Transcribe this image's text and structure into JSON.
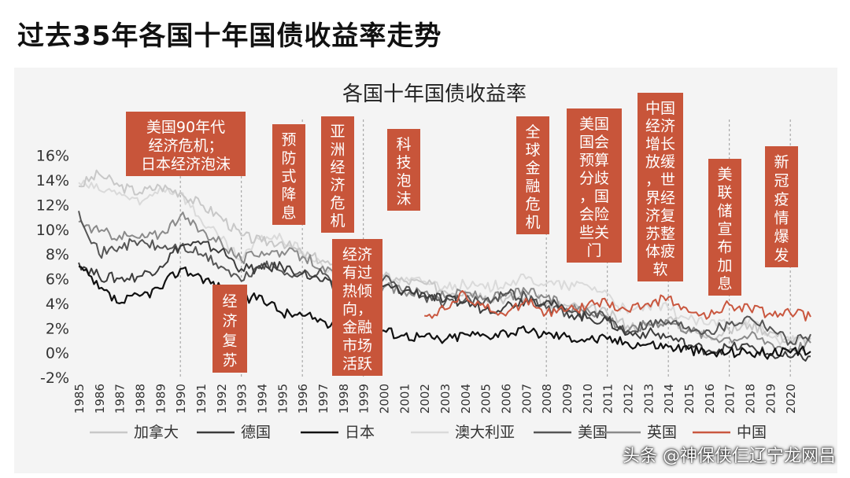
{
  "page": {
    "title": "过去35年各国十年国债收益率走势",
    "watermark": "头条 @神保侠仨辽宁龙网吕"
  },
  "chart_data": {
    "type": "line",
    "title": "各国十年国债收益率",
    "xlabel": "",
    "ylabel": "",
    "ylim": [
      -2,
      17
    ],
    "xlim": [
      1985,
      2021
    ],
    "y_ticks": [
      "16%",
      "14%",
      "12%",
      "10%",
      "8%",
      "6%",
      "4%",
      "2%",
      "0%",
      "-2%"
    ],
    "y_tick_values": [
      16,
      14,
      12,
      10,
      8,
      6,
      4,
      2,
      0,
      -2
    ],
    "x_ticks": [
      "1985",
      "1986",
      "1987",
      "1988",
      "1989",
      "1990",
      "1991",
      "1992",
      "1993",
      "1994",
      "1995",
      "1996",
      "1997",
      "1998",
      "1999",
      "2000",
      "2001",
      "2002",
      "2003",
      "2004",
      "2005",
      "2006",
      "2007",
      "2008",
      "2009",
      "2010",
      "2011",
      "2012",
      "2013",
      "2014",
      "2015",
      "2016",
      "2017",
      "2018",
      "2019",
      "2020"
    ],
    "vlines": [
      1990,
      1993,
      1996,
      1999,
      2008,
      2011,
      2014,
      2017,
      2020
    ],
    "series": [
      {
        "name": "加拿大",
        "color": "#c8c8c8",
        "x": [
          1985,
          1986,
          1987,
          1988,
          1989,
          1990,
          1991,
          1992,
          1993,
          1994,
          1995,
          1996,
          1997,
          1998,
          1999,
          2000,
          2001,
          2002,
          2003,
          2004,
          2005,
          2006,
          2007,
          2008,
          2009,
          2010,
          2011,
          2012,
          2013,
          2014,
          2015,
          2016,
          2017,
          2018,
          2019,
          2020,
          2021
        ],
        "y": [
          13.5,
          14.5,
          13.5,
          13.0,
          13.5,
          13.0,
          12.0,
          11.0,
          9.5,
          9.0,
          9.0,
          8.0,
          7.5,
          6.5,
          6.0,
          6.2,
          5.8,
          5.6,
          5.0,
          5.0,
          4.6,
          4.4,
          4.6,
          4.0,
          3.8,
          3.6,
          3.2,
          2.2,
          2.2,
          2.8,
          1.8,
          1.4,
          1.8,
          2.3,
          1.7,
          1.0,
          1.1
        ]
      },
      {
        "name": "德国",
        "color": "#3c3c3c",
        "x": [
          1985,
          1986,
          1987,
          1988,
          1989,
          1990,
          1991,
          1992,
          1993,
          1994,
          1995,
          1996,
          1997,
          1998,
          1999,
          2000,
          2001,
          2002,
          2003,
          2004,
          2005,
          2006,
          2007,
          2008,
          2009,
          2010,
          2011,
          2012,
          2013,
          2014,
          2015,
          2016,
          2017,
          2018,
          2019,
          2020,
          2021
        ],
        "y": [
          7.3,
          6.2,
          6.0,
          6.2,
          7.0,
          8.7,
          8.8,
          8.3,
          6.8,
          6.8,
          7.0,
          6.4,
          5.8,
          4.8,
          4.2,
          5.4,
          5.0,
          4.8,
          4.2,
          4.1,
          3.5,
          3.8,
          4.3,
          4.2,
          3.3,
          2.8,
          2.6,
          1.5,
          1.6,
          1.3,
          0.6,
          0.2,
          0.4,
          0.5,
          -0.2,
          -0.4,
          -0.3
        ]
      },
      {
        "name": "日本",
        "color": "#111111",
        "x": [
          1985,
          1986,
          1987,
          1988,
          1989,
          1990,
          1991,
          1992,
          1993,
          1994,
          1995,
          1996,
          1997,
          1998,
          1999,
          2000,
          2001,
          2002,
          2003,
          2004,
          2005,
          2006,
          2007,
          2008,
          2009,
          2010,
          2011,
          2012,
          2013,
          2014,
          2015,
          2016,
          2017,
          2018,
          2019,
          2020,
          2021
        ],
        "y": [
          7.0,
          5.2,
          4.0,
          4.6,
          5.2,
          6.8,
          6.2,
          5.2,
          4.2,
          4.6,
          3.2,
          3.0,
          2.6,
          1.5,
          1.8,
          1.8,
          1.4,
          1.3,
          1.0,
          1.5,
          1.4,
          1.7,
          1.7,
          1.5,
          1.3,
          1.1,
          1.1,
          0.8,
          0.7,
          0.5,
          0.3,
          -0.1,
          0.05,
          0.05,
          -0.1,
          0.0,
          0.1
        ]
      },
      {
        "name": "澳大利亚",
        "color": "#dadada",
        "x": [
          1985,
          1986,
          1987,
          1988,
          1989,
          1990,
          1991,
          1992,
          1993,
          1994,
          1995,
          1996,
          1997,
          1998,
          1999,
          2000,
          2001,
          2002,
          2003,
          2004,
          2005,
          2006,
          2007,
          2008,
          2009,
          2010,
          2011,
          2012,
          2013,
          2014,
          2015,
          2016,
          2017,
          2018,
          2019,
          2020,
          2021
        ],
        "y": [
          13.8,
          13.2,
          13.0,
          12.0,
          13.4,
          13.0,
          10.8,
          9.2,
          7.4,
          9.5,
          9.2,
          8.2,
          7.0,
          5.6,
          6.2,
          6.2,
          5.8,
          5.8,
          5.4,
          5.5,
          5.2,
          5.7,
          6.0,
          5.6,
          5.4,
          5.5,
          4.8,
          3.2,
          3.8,
          3.6,
          2.7,
          2.3,
          2.6,
          2.7,
          1.3,
          0.9,
          1.2
        ]
      },
      {
        "name": "美国",
        "color": "#555555",
        "x": [
          1985,
          1986,
          1987,
          1988,
          1989,
          1990,
          1991,
          1992,
          1993,
          1994,
          1995,
          1996,
          1997,
          1998,
          1999,
          2000,
          2001,
          2002,
          2003,
          2004,
          2005,
          2006,
          2007,
          2008,
          2009,
          2010,
          2011,
          2012,
          2013,
          2014,
          2015,
          2016,
          2017,
          2018,
          2019,
          2020,
          2021
        ],
        "y": [
          11.5,
          8.0,
          8.6,
          9.0,
          8.5,
          8.6,
          8.0,
          7.0,
          5.8,
          7.2,
          6.6,
          6.4,
          6.4,
          5.3,
          5.6,
          6.0,
          5.0,
          4.6,
          4.0,
          4.3,
          4.3,
          4.8,
          4.6,
          3.6,
          3.3,
          3.2,
          2.8,
          1.8,
          2.4,
          2.5,
          2.1,
          1.8,
          2.3,
          2.9,
          2.1,
          0.9,
          1.5
        ]
      },
      {
        "name": "英国",
        "color": "#8a8a8a",
        "x": [
          1985,
          1986,
          1987,
          1988,
          1989,
          1990,
          1991,
          1992,
          1993,
          1994,
          1995,
          1996,
          1997,
          1998,
          1999,
          2000,
          2001,
          2002,
          2003,
          2004,
          2005,
          2006,
          2007,
          2008,
          2009,
          2010,
          2011,
          2012,
          2013,
          2014,
          2015,
          2016,
          2017,
          2018,
          2019,
          2020,
          2021
        ],
        "y": [
          10.6,
          9.8,
          9.5,
          9.3,
          9.6,
          11.1,
          9.9,
          9.0,
          7.5,
          8.2,
          8.2,
          7.8,
          7.0,
          5.5,
          5.0,
          5.3,
          5.0,
          4.9,
          4.5,
          4.9,
          4.4,
          4.6,
          5.0,
          4.5,
          3.6,
          3.6,
          2.9,
          1.7,
          2.4,
          2.6,
          1.9,
          1.3,
          1.2,
          1.4,
          0.8,
          0.3,
          0.8
        ]
      },
      {
        "name": "中国",
        "color": "#c9573f",
        "x": [
          2002,
          2003,
          2004,
          2005,
          2006,
          2007,
          2008,
          2009,
          2010,
          2011,
          2012,
          2013,
          2014,
          2015,
          2016,
          2017,
          2018,
          2019,
          2020,
          2021
        ],
        "y": [
          3.0,
          3.5,
          4.8,
          3.6,
          3.0,
          4.4,
          3.2,
          3.4,
          3.8,
          4.0,
          3.4,
          4.0,
          4.5,
          3.3,
          2.9,
          3.9,
          3.6,
          3.2,
          3.2,
          2.9
        ]
      }
    ],
    "annotations": [
      {
        "text": "美国90年代\n经济危机；\n日本经济泡沫",
        "color": "#c8553a"
      },
      {
        "text": "预\n防\n式\n降\n息",
        "color": "#c8553a"
      },
      {
        "text": "亚\n洲\n经\n济\n危\n机",
        "color": "#c8553a"
      },
      {
        "text": "经济\n有过\n热倾\n向，\n金融\n市场\n活跃",
        "color": "#c8553a"
      },
      {
        "text": "经\n济\n复\n苏",
        "color": "#c8553a"
      },
      {
        "text": "科\n技\n泡\n沫",
        "color": "#c8553a"
      },
      {
        "text": "全\n球\n金\n融\n危\n机",
        "color": "#c8553a"
      },
      {
        "text": "美国\n国会\n预算\n分歧\n，国\n会险\n些关\n门",
        "color": "#c8553a"
      },
      {
        "text": "中国\n经济\n增长\n放缓\n，世\n界经\n济复\n苏整\n体疲\n软",
        "color": "#c8553a"
      },
      {
        "text": "美\n联\n储\n宣\n布\n加\n息",
        "color": "#c8553a"
      },
      {
        "text": "新\n冠\n疫\n情\n爆\n发",
        "color": "#c8553a"
      }
    ],
    "legend_position": "bottom",
    "grid": false
  }
}
